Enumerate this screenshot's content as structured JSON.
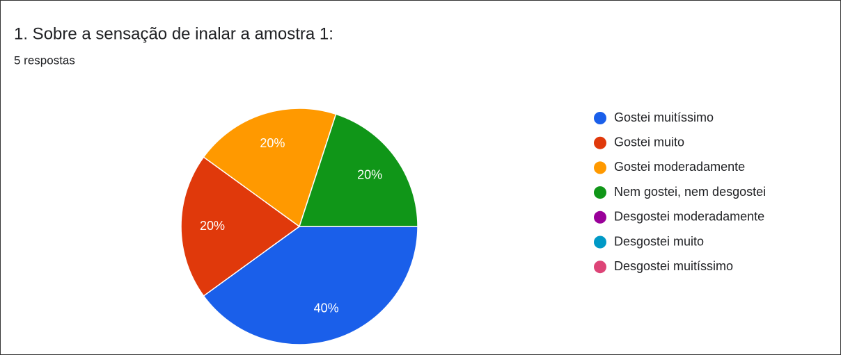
{
  "chart_data": {
    "type": "pie",
    "title": "1. Sobre a sensação de inalar a amostra 1:",
    "subtitle": "5 respostas",
    "categories": [
      "Gostei muitíssimo",
      "Gostei muito",
      "Gostei moderadamente",
      "Nem gostei, nem desgostei",
      "Desgostei moderadamente",
      "Desgostei muito",
      "Desgostei muitíssimo"
    ],
    "values": [
      40,
      20,
      20,
      20,
      0,
      0,
      0
    ],
    "value_labels": [
      "40%",
      "20%",
      "20%",
      "20%",
      null,
      null,
      null
    ],
    "colors": [
      "#1a5fea",
      "#e0390b",
      "#ff9900",
      "#109618",
      "#990099",
      "#0099c6",
      "#dd4477"
    ],
    "legend": "right"
  }
}
